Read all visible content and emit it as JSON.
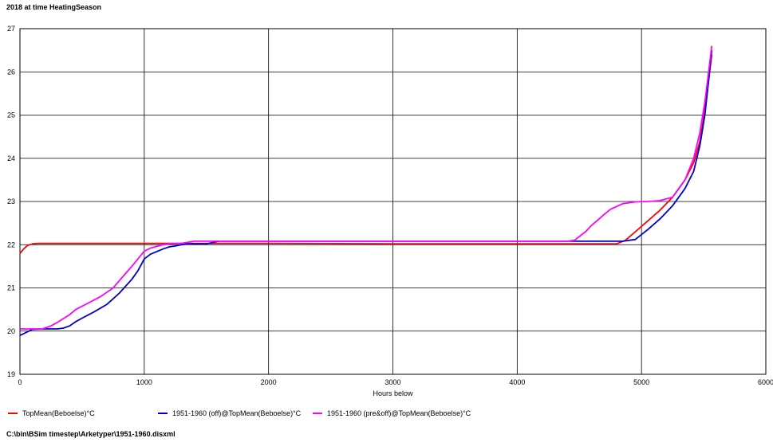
{
  "title": "2018 at time HeatingSeason",
  "footer": "C:\\bin\\BSim timestep\\Arketyper\\1951-1960.disxml",
  "chart_data": {
    "type": "line",
    "xlabel": "Hours below",
    "ylabel": "",
    "xlim": [
      0,
      6000
    ],
    "ylim": [
      19,
      27
    ],
    "xticks": [
      0,
      1000,
      2000,
      3000,
      4000,
      5000,
      6000
    ],
    "yticks": [
      19,
      20,
      21,
      22,
      23,
      24,
      25,
      26,
      27
    ],
    "grid": true,
    "legend_position": "bottom",
    "series": [
      {
        "name": "TopMean(Beboelse)°C",
        "color": "#ff0000",
        "x": [
          0,
          30,
          60,
          100,
          150,
          300,
          1000,
          2000,
          3000,
          4000,
          4800,
          4870,
          4950,
          5050,
          5150,
          5250,
          5350,
          5420,
          5470,
          5510,
          5540,
          5565
        ],
        "y": [
          21.8,
          21.9,
          21.98,
          22.02,
          22.03,
          22.03,
          22.03,
          22.03,
          22.02,
          22.02,
          22.02,
          22.1,
          22.3,
          22.55,
          22.8,
          23.1,
          23.5,
          23.9,
          24.4,
          25.1,
          25.8,
          26.4
        ]
      },
      {
        "name": "1951-1960 (off)@TopMean(Beboelse)°C",
        "color": "#0000cc",
        "x": [
          0,
          50,
          100,
          200,
          300,
          350,
          400,
          450,
          500,
          600,
          700,
          750,
          800,
          900,
          950,
          1000,
          1050,
          1100,
          1150,
          1200,
          1250,
          1300,
          1350,
          1400,
          1500,
          1550,
          1600,
          2000,
          3000,
          4000,
          4700,
          4850,
          4950,
          5050,
          5150,
          5250,
          5350,
          5420,
          5470,
          5510,
          5540,
          5565
        ],
        "y": [
          19.9,
          19.97,
          20.04,
          20.05,
          20.05,
          20.07,
          20.12,
          20.22,
          20.3,
          20.45,
          20.62,
          20.75,
          20.88,
          21.2,
          21.4,
          21.67,
          21.78,
          21.84,
          21.9,
          21.95,
          21.97,
          22.0,
          22.02,
          22.02,
          22.02,
          22.05,
          22.08,
          22.08,
          22.08,
          22.08,
          22.08,
          22.08,
          22.12,
          22.35,
          22.6,
          22.9,
          23.3,
          23.7,
          24.3,
          25.0,
          25.8,
          26.5
        ]
      },
      {
        "name": "1951-1960 (pre&off)@TopMean(Beboelse)°C",
        "color": "#ff00ff",
        "x": [
          0,
          100,
          180,
          250,
          300,
          400,
          450,
          550,
          650,
          750,
          800,
          900,
          1000,
          1050,
          1100,
          1150,
          1200,
          1300,
          1400,
          1500,
          2000,
          3000,
          4000,
          4400,
          4460,
          4550,
          4600,
          4700,
          4750,
          4850,
          4950,
          5050,
          5150,
          5250,
          5350,
          5420,
          5470,
          5510,
          5540,
          5565
        ],
        "y": [
          20.05,
          20.05,
          20.05,
          20.12,
          20.2,
          20.38,
          20.5,
          20.65,
          20.8,
          21.0,
          21.17,
          21.5,
          21.85,
          21.92,
          21.96,
          22.0,
          22.02,
          22.03,
          22.08,
          22.08,
          22.08,
          22.08,
          22.08,
          22.08,
          22.1,
          22.3,
          22.45,
          22.7,
          22.82,
          22.95,
          22.99,
          23.0,
          23.02,
          23.1,
          23.5,
          24.0,
          24.6,
          25.3,
          26.0,
          26.6
        ]
      }
    ]
  }
}
